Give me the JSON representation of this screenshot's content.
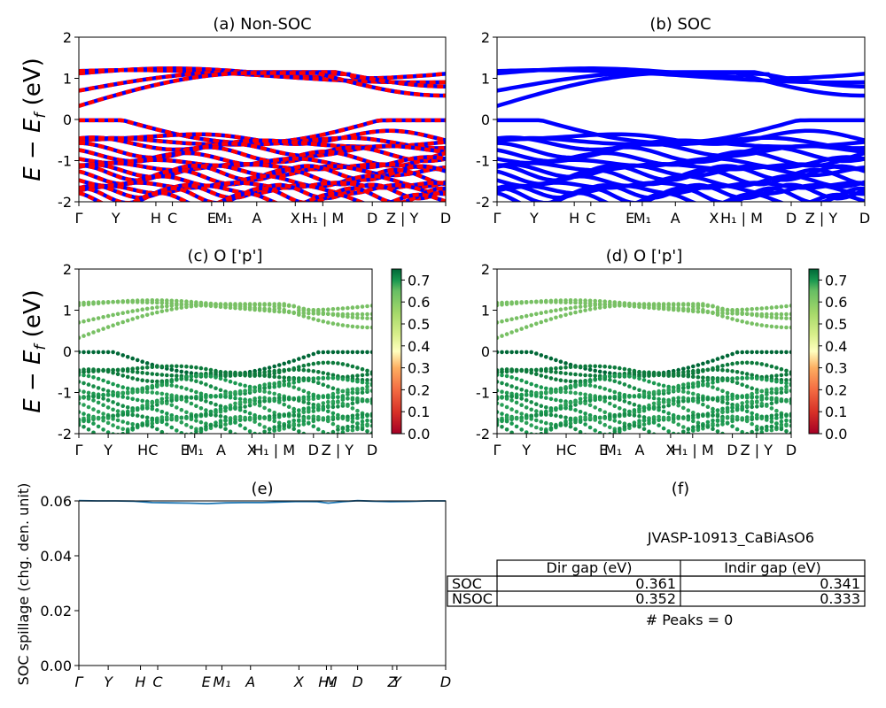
{
  "chart_data": [
    {
      "id": "a",
      "type": "line",
      "title": "(a) Non-SOC",
      "ylabel": "E − E_f (eV)",
      "ylim": [
        -2,
        2
      ],
      "yticks": [
        -2,
        -1,
        0,
        1,
        2
      ],
      "kpath": [
        "Γ",
        "Y",
        "H",
        "C",
        "E",
        "M₁",
        "A",
        "X",
        "H₁ | M",
        "D",
        "Z | Y",
        "D"
      ],
      "kpos": [
        0,
        0.101,
        0.21,
        0.255,
        0.362,
        0.395,
        0.485,
        0.59,
        0.665,
        0.8,
        0.882,
        1.0
      ],
      "series_colors": [
        "#0000ff",
        "#ff0000"
      ],
      "note": ""
    },
    {
      "id": "b",
      "type": "line",
      "title": "(b) SOC",
      "ylim": [
        -2,
        2
      ],
      "yticks": [
        -2,
        -1,
        0,
        1,
        2
      ],
      "kpath": [
        "Γ",
        "Y",
        "H",
        "C",
        "E",
        "M₁",
        "A",
        "X",
        "H₁ | M",
        "D",
        "Z | Y",
        "D"
      ],
      "kpos": [
        0,
        0.101,
        0.21,
        0.255,
        0.362,
        0.395,
        0.485,
        0.59,
        0.665,
        0.8,
        0.882,
        1.0
      ],
      "series_colors": [
        "#0000ff"
      ]
    },
    {
      "id": "c",
      "type": "scatter",
      "title": "(c)  O ['p']",
      "ylabel": "E − E_f (eV)",
      "ylim": [
        -2,
        2
      ],
      "yticks": [
        -2,
        -1,
        0,
        1,
        2
      ],
      "kpath": [
        "Γ",
        "Y",
        "HC",
        "E",
        "M₁",
        "A",
        "X",
        "H₁ | M",
        "D",
        "Z | Y",
        "D"
      ],
      "kpos": [
        0,
        0.1,
        0.235,
        0.362,
        0.395,
        0.485,
        0.59,
        0.665,
        0.8,
        0.882,
        1.0
      ],
      "colorbar": {
        "min": 0.0,
        "max": 0.75,
        "ticks": [
          "0.0",
          "0.1",
          "0.2",
          "0.3",
          "0.4",
          "0.5",
          "0.6",
          "0.7"
        ],
        "colormap": "RdYlGn"
      }
    },
    {
      "id": "d",
      "type": "scatter",
      "title": "(d) O ['p']",
      "ylim": [
        -2,
        2
      ],
      "yticks": [
        -2,
        -1,
        0,
        1,
        2
      ],
      "kpath": [
        "Γ",
        "Y",
        "HC",
        "E",
        "M₁",
        "A",
        "X",
        "H₁ | M",
        "D",
        "Z | Y",
        "D"
      ],
      "kpos": [
        0,
        0.1,
        0.235,
        0.362,
        0.395,
        0.485,
        0.59,
        0.665,
        0.8,
        0.882,
        1.0
      ],
      "colorbar": {
        "min": 0.0,
        "max": 0.75,
        "ticks": [
          "0.0",
          "0.1",
          "0.2",
          "0.3",
          "0.4",
          "0.5",
          "0.6",
          "0.7"
        ],
        "colormap": "RdYlGn"
      }
    },
    {
      "id": "e",
      "type": "line",
      "title": "(e)",
      "ylabel": "SOC spillage (chg. den. unit)",
      "ylim": [
        0,
        0.06
      ],
      "yticks": [
        "0.00",
        "0.02",
        "0.04",
        "0.06"
      ],
      "kpath": [
        "Γ",
        "Y",
        "H",
        "C",
        "E",
        "M₁",
        "A",
        "X",
        "H₁",
        "M",
        "D",
        "Z",
        "Y",
        "D"
      ],
      "kpos": [
        0,
        0.08,
        0.168,
        0.215,
        0.347,
        0.39,
        0.468,
        0.6,
        0.675,
        0.688,
        0.76,
        0.855,
        0.867,
        1.0
      ],
      "series": [
        {
          "x": [
            0,
            0.05,
            0.1,
            0.15,
            0.2,
            0.25,
            0.3,
            0.35,
            0.4,
            0.45,
            0.5,
            0.55,
            0.6,
            0.65,
            0.68,
            0.72,
            0.76,
            0.8,
            0.85,
            0.9,
            0.95,
            1.0
          ],
          "y": [
            0.0601,
            0.06,
            0.06,
            0.0599,
            0.0594,
            0.0593,
            0.0592,
            0.059,
            0.0593,
            0.0594,
            0.0594,
            0.0596,
            0.0598,
            0.0597,
            0.0592,
            0.0597,
            0.0601,
            0.0599,
            0.0597,
            0.0598,
            0.06,
            0.06
          ],
          "color": "#1f77b4"
        }
      ]
    },
    {
      "id": "f",
      "type": "table",
      "title": "(f)",
      "material": "JVASP-10913_CaBiAsO6",
      "columns": [
        "Dir gap (eV)",
        "Indir gap (eV)"
      ],
      "rows": [
        {
          "label": "SOC",
          "values": [
            "0.361",
            "0.341"
          ]
        },
        {
          "label": "NSOC",
          "values": [
            "0.352",
            "0.333"
          ]
        }
      ],
      "footer": "# Peaks = 0"
    }
  ]
}
